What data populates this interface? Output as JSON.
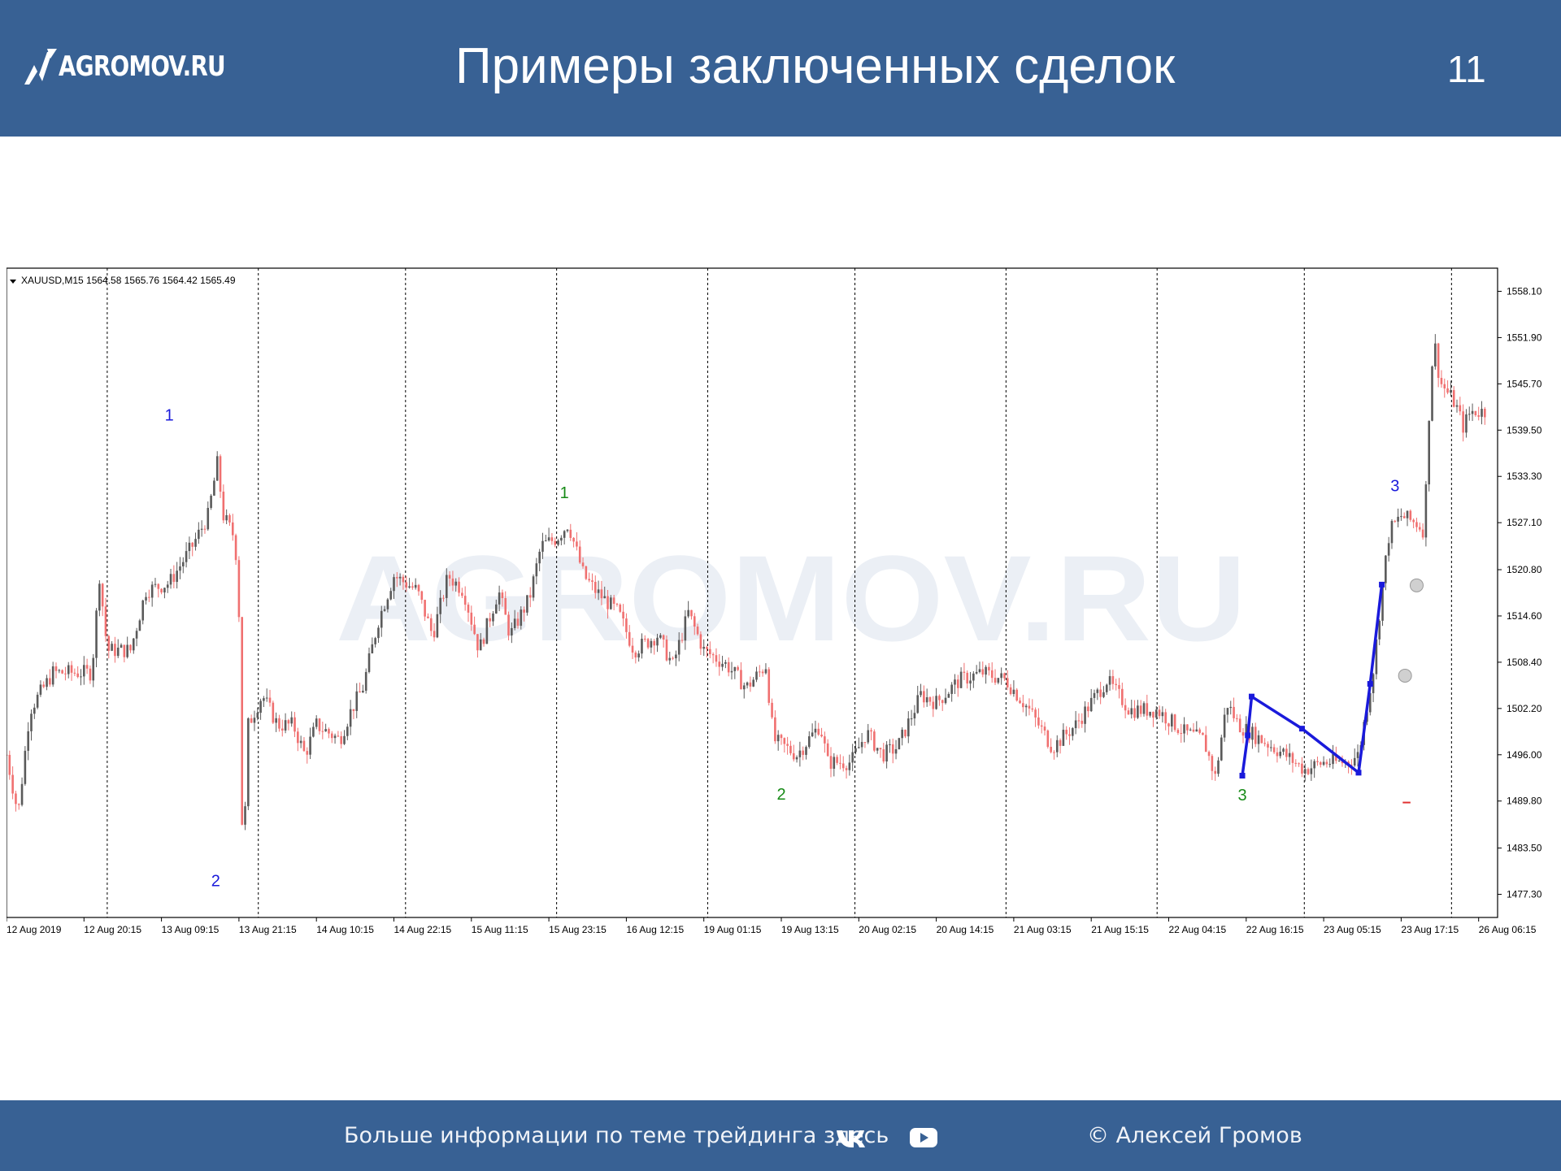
{
  "header": {
    "logo_text": "AGROMOV.RU",
    "title": "Примеры заключенных сделок",
    "page_number": "11"
  },
  "footer": {
    "info_text": "Больше информации по теме трейдинга здесь",
    "copyright": "© Алексей Громов",
    "icons": [
      "vk-icon",
      "youtube-icon"
    ]
  },
  "chart_data": {
    "type": "candlestick",
    "title": "XAUUSD,M15  1564.58 1565.76 1564.42 1565.49",
    "watermark": "AGROMOV.RU",
    "ylim": [
      1474.2,
      1561.2
    ],
    "y_ticks": [
      "1558.10",
      "1551.90",
      "1545.70",
      "1539.50",
      "1533.30",
      "1527.10",
      "1520.80",
      "1514.60",
      "1508.40",
      "1502.20",
      "1496.00",
      "1489.80",
      "1483.50",
      "1477.30"
    ],
    "x_ticks": [
      "12 Aug 2019",
      "12 Aug 20:15",
      "13 Aug 09:15",
      "13 Aug 21:15",
      "14 Aug 10:15",
      "14 Aug 22:15",
      "15 Aug 11:15",
      "15 Aug 23:15",
      "16 Aug 12:15",
      "19 Aug 01:15",
      "19 Aug 13:15",
      "20 Aug 02:15",
      "20 Aug 14:15",
      "21 Aug 03:15",
      "21 Aug 15:15",
      "22 Aug 04:15",
      "22 Aug 16:15",
      "23 Aug 05:15",
      "23 Aug 17:15",
      "26 Aug 06:15"
    ],
    "day_separators_index": [
      1.3,
      3.25,
      5.15,
      7.1,
      9.05,
      10.95,
      12.9,
      14.85,
      16.75,
      18.65
    ],
    "price_path": [
      [
        0,
        1496
      ],
      [
        0.15,
        1488
      ],
      [
        0.3,
        1502
      ],
      [
        0.6,
        1507
      ],
      [
        1.1,
        1507
      ],
      [
        1.2,
        1520
      ],
      [
        1.3,
        1510
      ],
      [
        1.6,
        1510
      ],
      [
        1.8,
        1518
      ],
      [
        2.1,
        1519
      ],
      [
        2.4,
        1524
      ],
      [
        2.6,
        1528
      ],
      [
        2.72,
        1535
      ],
      [
        2.8,
        1528
      ],
      [
        2.95,
        1525
      ],
      [
        3.0,
        1515
      ],
      [
        3.05,
        1480
      ],
      [
        3.12,
        1500
      ],
      [
        3.3,
        1504
      ],
      [
        3.5,
        1500
      ],
      [
        3.7,
        1500
      ],
      [
        3.85,
        1496
      ],
      [
        4.0,
        1500
      ],
      [
        4.3,
        1498
      ],
      [
        4.45,
        1502
      ],
      [
        4.6,
        1505
      ],
      [
        4.8,
        1514
      ],
      [
        5.0,
        1520
      ],
      [
        5.3,
        1518
      ],
      [
        5.5,
        1512
      ],
      [
        5.7,
        1520
      ],
      [
        5.9,
        1518
      ],
      [
        6.1,
        1510
      ],
      [
        6.35,
        1518
      ],
      [
        6.5,
        1512
      ],
      [
        6.75,
        1517
      ],
      [
        6.9,
        1524
      ],
      [
        7.1,
        1525
      ],
      [
        7.25,
        1527
      ],
      [
        7.45,
        1520
      ],
      [
        7.6,
        1518
      ],
      [
        7.9,
        1515
      ],
      [
        8.1,
        1510
      ],
      [
        8.4,
        1512
      ],
      [
        8.6,
        1508
      ],
      [
        8.8,
        1515
      ],
      [
        9.0,
        1510
      ],
      [
        9.3,
        1508
      ],
      [
        9.55,
        1505
      ],
      [
        9.8,
        1508
      ],
      [
        9.9,
        1498
      ],
      [
        10.2,
        1496
      ],
      [
        10.5,
        1500
      ],
      [
        10.6,
        1495
      ],
      [
        10.9,
        1495
      ],
      [
        11.1,
        1499
      ],
      [
        11.3,
        1496
      ],
      [
        11.5,
        1497
      ],
      [
        11.8,
        1504
      ],
      [
        12.0,
        1503
      ],
      [
        12.3,
        1506
      ],
      [
        12.6,
        1507
      ],
      [
        12.9,
        1506
      ],
      [
        13.2,
        1502
      ],
      [
        13.5,
        1497
      ],
      [
        13.8,
        1500
      ],
      [
        14.2,
        1506
      ],
      [
        14.5,
        1502
      ],
      [
        14.85,
        1502
      ],
      [
        15.2,
        1499
      ],
      [
        15.45,
        1498
      ],
      [
        15.6,
        1493
      ],
      [
        15.75,
        1503
      ],
      [
        15.9,
        1500
      ],
      [
        16.2,
        1498
      ],
      [
        16.5,
        1496
      ],
      [
        16.75,
        1494
      ],
      [
        17.0,
        1495
      ],
      [
        17.3,
        1495
      ],
      [
        17.45,
        1496
      ],
      [
        17.55,
        1502
      ],
      [
        17.65,
        1508
      ],
      [
        17.75,
        1518
      ],
      [
        17.85,
        1526
      ],
      [
        18.0,
        1528
      ],
      [
        18.2,
        1527
      ],
      [
        18.3,
        1526
      ],
      [
        18.35,
        1540
      ],
      [
        18.42,
        1552
      ],
      [
        18.5,
        1546
      ],
      [
        18.7,
        1543
      ],
      [
        18.8,
        1540
      ],
      [
        18.9,
        1542
      ],
      [
        19.1,
        1542
      ]
    ],
    "wave_labels": [
      {
        "text": "1",
        "color": "#1a1adb",
        "x": 2.1,
        "y": 1540.8
      },
      {
        "text": "2",
        "color": "#1a1adb",
        "x": 2.7,
        "y": 1478.4
      },
      {
        "text": "1",
        "color": "#168a16",
        "x": 7.2,
        "y": 1530.4
      },
      {
        "text": "2",
        "color": "#168a16",
        "x": 10.0,
        "y": 1490.0
      },
      {
        "text": "3",
        "color": "#168a16",
        "x": 15.95,
        "y": 1489.9
      },
      {
        "text": "3",
        "color": "#1a1adb",
        "x": 17.92,
        "y": 1531.3
      }
    ],
    "blue_pattern": [
      [
        15.95,
        1493.2
      ],
      [
        16.02,
        1498.6
      ],
      [
        16.07,
        1503.8
      ],
      [
        16.72,
        1499.5
      ],
      [
        17.45,
        1493.6
      ],
      [
        17.6,
        1505.5
      ],
      [
        17.75,
        1518.8
      ]
    ],
    "markers": [
      {
        "type": "circle",
        "x": 18.2,
        "y": 1518.7
      },
      {
        "type": "circle",
        "x": 18.05,
        "y": 1506.6
      }
    ]
  }
}
